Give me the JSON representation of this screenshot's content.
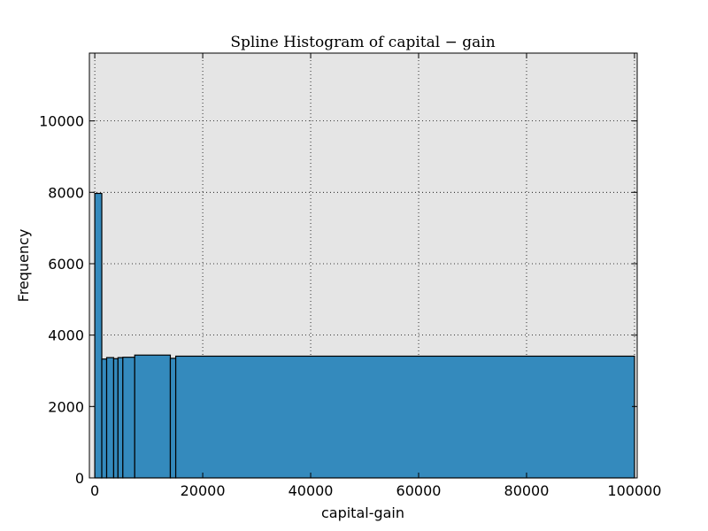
{
  "chart_data": {
    "type": "bar",
    "title": "Spline Histogram of capital − gain",
    "xlabel": "capital-gain",
    "ylabel": "Frequency",
    "xlim": [
      -1000,
      100500
    ],
    "ylim": [
      0,
      11900
    ],
    "grid": true,
    "xticks": [
      0,
      20000,
      40000,
      60000,
      80000,
      100000
    ],
    "yticks": [
      0,
      2000,
      4000,
      6000,
      8000,
      10000
    ],
    "bar_color": "#348abd",
    "plot_background": "#e5e5e5",
    "bins": [
      {
        "x0": 0,
        "x1": 1300,
        "value": 7970
      },
      {
        "x0": 1300,
        "x1": 2200,
        "value": 3330
      },
      {
        "x0": 2200,
        "x1": 3500,
        "value": 3370
      },
      {
        "x0": 3500,
        "x1": 4300,
        "value": 3340
      },
      {
        "x0": 4300,
        "x1": 5200,
        "value": 3370
      },
      {
        "x0": 5200,
        "x1": 7400,
        "value": 3380
      },
      {
        "x0": 7400,
        "x1": 14000,
        "value": 3440
      },
      {
        "x0": 14000,
        "x1": 15000,
        "value": 3350
      },
      {
        "x0": 15000,
        "x1": 99999,
        "value": 3410
      }
    ]
  }
}
